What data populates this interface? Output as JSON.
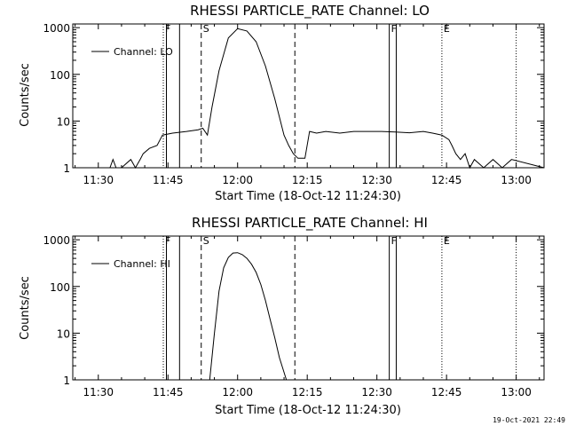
{
  "footer_timestamp": "19-Oct-2021 22:49",
  "chart_data": [
    {
      "type": "line",
      "title": "RHESSI PARTICLE_RATE Channel: LO",
      "xlabel": "Start Time (18-Oct-12 11:24:30)",
      "ylabel": "Counts/sec",
      "xlim": [
        "11:24:30",
        "13:06:00"
      ],
      "ylim": [
        1,
        1200
      ],
      "yscale": "log",
      "x_ticks": [
        "11:30",
        "11:45",
        "12:00",
        "12:15",
        "12:30",
        "12:45",
        "13:00"
      ],
      "y_ticks": [
        "1",
        "10",
        "100",
        "1000"
      ],
      "legend": {
        "label": "Channel: LO",
        "placement": "top-left"
      },
      "series": [
        {
          "name": "Channel: LO",
          "x": [
            "11:24:30",
            "11:32:30",
            "11:33:10",
            "11:33:50",
            "11:35:00",
            "11:37:00",
            "11:38:00",
            "11:39:00",
            "11:39:40",
            "11:41:00",
            "11:42:40",
            "11:43:50",
            "11:46:00",
            "11:49:00",
            "11:51:30",
            "11:52:30",
            "11:53:30",
            "11:54:30",
            "11:56:00",
            "11:58:00",
            "12:00:00",
            "12:02:00",
            "12:04:00",
            "12:06:00",
            "12:08:00",
            "12:10:00",
            "12:11:00",
            "12:12:00",
            "12:13:00",
            "12:14:30",
            "12:15:30",
            "12:17:00",
            "12:19:00",
            "12:22:00",
            "12:25:00",
            "12:28:00",
            "12:31:00",
            "12:34:00",
            "12:37:00",
            "12:40:00",
            "12:42:00",
            "12:44:00",
            "12:45:30",
            "12:46:10",
            "12:47:00",
            "12:48:00",
            "12:49:00",
            "12:50:00",
            "12:51:00",
            "12:53:00",
            "12:55:00",
            "12:57:00",
            "12:59:00",
            "13:06:00"
          ],
          "values": [
            1,
            1,
            1.5,
            1,
            1,
            1.5,
            1,
            1.5,
            2,
            2.6,
            3,
            5,
            5.5,
            6,
            6.5,
            7,
            5,
            20,
            120,
            600,
            950,
            850,
            500,
            150,
            30,
            5,
            3,
            2,
            1.6,
            1.6,
            6,
            5.5,
            6,
            5.5,
            6,
            6,
            6,
            5.8,
            5.6,
            6,
            5.5,
            5,
            4,
            3,
            2,
            1.5,
            2,
            1,
            1.5,
            1,
            1.5,
            1,
            1.5,
            1
          ]
        }
      ],
      "vertical_lines": [
        {
          "label": "F",
          "time": "11:44:00",
          "style": "dotted"
        },
        {
          "label": "",
          "time": "11:44:40",
          "style": "solid"
        },
        {
          "label": "",
          "time": "11:47:30",
          "style": "solid"
        },
        {
          "label": "S",
          "time": "11:52:10",
          "style": "dashed"
        },
        {
          "label": "",
          "time": "12:12:20",
          "style": "dashed"
        },
        {
          "label": "F",
          "time": "12:32:40",
          "style": "solid"
        },
        {
          "label": "",
          "time": "12:34:10",
          "style": "solid"
        },
        {
          "label": "E",
          "time": "12:44:00",
          "style": "dotted"
        },
        {
          "label": "",
          "time": "13:00:00",
          "style": "dotted"
        }
      ]
    },
    {
      "type": "line",
      "title": "RHESSI PARTICLE_RATE Channel: HI",
      "xlabel": "Start Time (18-Oct-12 11:24:30)",
      "ylabel": "Counts/sec",
      "xlim": [
        "11:24:30",
        "13:06:00"
      ],
      "ylim": [
        1,
        1200
      ],
      "yscale": "log",
      "x_ticks": [
        "11:30",
        "11:45",
        "12:00",
        "12:15",
        "12:30",
        "12:45",
        "13:00"
      ],
      "y_ticks": [
        "1",
        "10",
        "100",
        "1000"
      ],
      "legend": {
        "label": "Channel: HI",
        "placement": "top-left"
      },
      "series": [
        {
          "name": "Channel: HI",
          "x": [
            "11:54:00",
            "11:55:00",
            "11:56:00",
            "11:57:00",
            "11:58:00",
            "11:59:00",
            "12:00:00",
            "12:01:00",
            "12:02:00",
            "12:03:00",
            "12:04:00",
            "12:05:00",
            "12:06:00",
            "12:07:00",
            "12:08:00",
            "12:09:00",
            "12:10:30"
          ],
          "values": [
            1,
            10,
            80,
            250,
            420,
            520,
            530,
            480,
            400,
            300,
            200,
            110,
            50,
            20,
            8,
            3,
            1
          ]
        }
      ],
      "vertical_lines": [
        {
          "label": "F",
          "time": "11:44:00",
          "style": "dotted"
        },
        {
          "label": "",
          "time": "11:44:40",
          "style": "solid"
        },
        {
          "label": "",
          "time": "11:47:30",
          "style": "solid"
        },
        {
          "label": "S",
          "time": "11:52:10",
          "style": "dashed"
        },
        {
          "label": "",
          "time": "12:12:20",
          "style": "dashed"
        },
        {
          "label": "F",
          "time": "12:32:40",
          "style": "solid"
        },
        {
          "label": "",
          "time": "12:34:10",
          "style": "solid"
        },
        {
          "label": "E",
          "time": "12:44:00",
          "style": "dotted"
        },
        {
          "label": "",
          "time": "13:00:00",
          "style": "dotted"
        }
      ]
    }
  ]
}
